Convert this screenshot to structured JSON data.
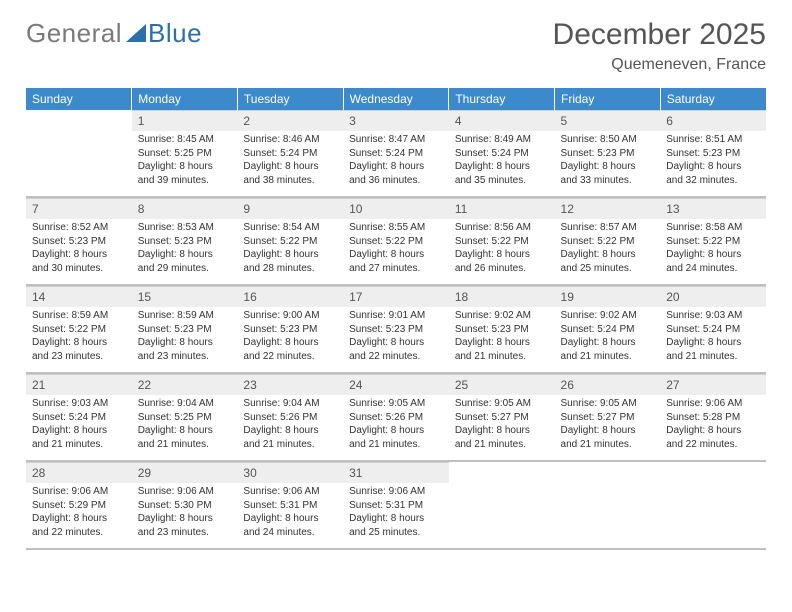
{
  "logo": {
    "part1": "General",
    "part2": "Blue",
    "color_gray": "#7a7a7a",
    "color_blue": "#2f6fa8"
  },
  "title": "December 2025",
  "location": "Quemeneven, France",
  "header_bg": "#3c8acb",
  "day_num_bg": "#eeeeee",
  "row_border": "#bfbfbf",
  "weekdays": [
    "Sunday",
    "Monday",
    "Tuesday",
    "Wednesday",
    "Thursday",
    "Friday",
    "Saturday"
  ],
  "cells": [
    {
      "n": "",
      "sr": "",
      "ss": "",
      "dl": ""
    },
    {
      "n": "1",
      "sr": "Sunrise: 8:45 AM",
      "ss": "Sunset: 5:25 PM",
      "dl": "Daylight: 8 hours and 39 minutes."
    },
    {
      "n": "2",
      "sr": "Sunrise: 8:46 AM",
      "ss": "Sunset: 5:24 PM",
      "dl": "Daylight: 8 hours and 38 minutes."
    },
    {
      "n": "3",
      "sr": "Sunrise: 8:47 AM",
      "ss": "Sunset: 5:24 PM",
      "dl": "Daylight: 8 hours and 36 minutes."
    },
    {
      "n": "4",
      "sr": "Sunrise: 8:49 AM",
      "ss": "Sunset: 5:24 PM",
      "dl": "Daylight: 8 hours and 35 minutes."
    },
    {
      "n": "5",
      "sr": "Sunrise: 8:50 AM",
      "ss": "Sunset: 5:23 PM",
      "dl": "Daylight: 8 hours and 33 minutes."
    },
    {
      "n": "6",
      "sr": "Sunrise: 8:51 AM",
      "ss": "Sunset: 5:23 PM",
      "dl": "Daylight: 8 hours and 32 minutes."
    },
    {
      "n": "7",
      "sr": "Sunrise: 8:52 AM",
      "ss": "Sunset: 5:23 PM",
      "dl": "Daylight: 8 hours and 30 minutes."
    },
    {
      "n": "8",
      "sr": "Sunrise: 8:53 AM",
      "ss": "Sunset: 5:23 PM",
      "dl": "Daylight: 8 hours and 29 minutes."
    },
    {
      "n": "9",
      "sr": "Sunrise: 8:54 AM",
      "ss": "Sunset: 5:22 PM",
      "dl": "Daylight: 8 hours and 28 minutes."
    },
    {
      "n": "10",
      "sr": "Sunrise: 8:55 AM",
      "ss": "Sunset: 5:22 PM",
      "dl": "Daylight: 8 hours and 27 minutes."
    },
    {
      "n": "11",
      "sr": "Sunrise: 8:56 AM",
      "ss": "Sunset: 5:22 PM",
      "dl": "Daylight: 8 hours and 26 minutes."
    },
    {
      "n": "12",
      "sr": "Sunrise: 8:57 AM",
      "ss": "Sunset: 5:22 PM",
      "dl": "Daylight: 8 hours and 25 minutes."
    },
    {
      "n": "13",
      "sr": "Sunrise: 8:58 AM",
      "ss": "Sunset: 5:22 PM",
      "dl": "Daylight: 8 hours and 24 minutes."
    },
    {
      "n": "14",
      "sr": "Sunrise: 8:59 AM",
      "ss": "Sunset: 5:22 PM",
      "dl": "Daylight: 8 hours and 23 minutes."
    },
    {
      "n": "15",
      "sr": "Sunrise: 8:59 AM",
      "ss": "Sunset: 5:23 PM",
      "dl": "Daylight: 8 hours and 23 minutes."
    },
    {
      "n": "16",
      "sr": "Sunrise: 9:00 AM",
      "ss": "Sunset: 5:23 PM",
      "dl": "Daylight: 8 hours and 22 minutes."
    },
    {
      "n": "17",
      "sr": "Sunrise: 9:01 AM",
      "ss": "Sunset: 5:23 PM",
      "dl": "Daylight: 8 hours and 22 minutes."
    },
    {
      "n": "18",
      "sr": "Sunrise: 9:02 AM",
      "ss": "Sunset: 5:23 PM",
      "dl": "Daylight: 8 hours and 21 minutes."
    },
    {
      "n": "19",
      "sr": "Sunrise: 9:02 AM",
      "ss": "Sunset: 5:24 PM",
      "dl": "Daylight: 8 hours and 21 minutes."
    },
    {
      "n": "20",
      "sr": "Sunrise: 9:03 AM",
      "ss": "Sunset: 5:24 PM",
      "dl": "Daylight: 8 hours and 21 minutes."
    },
    {
      "n": "21",
      "sr": "Sunrise: 9:03 AM",
      "ss": "Sunset: 5:24 PM",
      "dl": "Daylight: 8 hours and 21 minutes."
    },
    {
      "n": "22",
      "sr": "Sunrise: 9:04 AM",
      "ss": "Sunset: 5:25 PM",
      "dl": "Daylight: 8 hours and 21 minutes."
    },
    {
      "n": "23",
      "sr": "Sunrise: 9:04 AM",
      "ss": "Sunset: 5:26 PM",
      "dl": "Daylight: 8 hours and 21 minutes."
    },
    {
      "n": "24",
      "sr": "Sunrise: 9:05 AM",
      "ss": "Sunset: 5:26 PM",
      "dl": "Daylight: 8 hours and 21 minutes."
    },
    {
      "n": "25",
      "sr": "Sunrise: 9:05 AM",
      "ss": "Sunset: 5:27 PM",
      "dl": "Daylight: 8 hours and 21 minutes."
    },
    {
      "n": "26",
      "sr": "Sunrise: 9:05 AM",
      "ss": "Sunset: 5:27 PM",
      "dl": "Daylight: 8 hours and 21 minutes."
    },
    {
      "n": "27",
      "sr": "Sunrise: 9:06 AM",
      "ss": "Sunset: 5:28 PM",
      "dl": "Daylight: 8 hours and 22 minutes."
    },
    {
      "n": "28",
      "sr": "Sunrise: 9:06 AM",
      "ss": "Sunset: 5:29 PM",
      "dl": "Daylight: 8 hours and 22 minutes."
    },
    {
      "n": "29",
      "sr": "Sunrise: 9:06 AM",
      "ss": "Sunset: 5:30 PM",
      "dl": "Daylight: 8 hours and 23 minutes."
    },
    {
      "n": "30",
      "sr": "Sunrise: 9:06 AM",
      "ss": "Sunset: 5:31 PM",
      "dl": "Daylight: 8 hours and 24 minutes."
    },
    {
      "n": "31",
      "sr": "Sunrise: 9:06 AM",
      "ss": "Sunset: 5:31 PM",
      "dl": "Daylight: 8 hours and 25 minutes."
    },
    {
      "n": "",
      "sr": "",
      "ss": "",
      "dl": ""
    },
    {
      "n": "",
      "sr": "",
      "ss": "",
      "dl": ""
    },
    {
      "n": "",
      "sr": "",
      "ss": "",
      "dl": ""
    }
  ]
}
